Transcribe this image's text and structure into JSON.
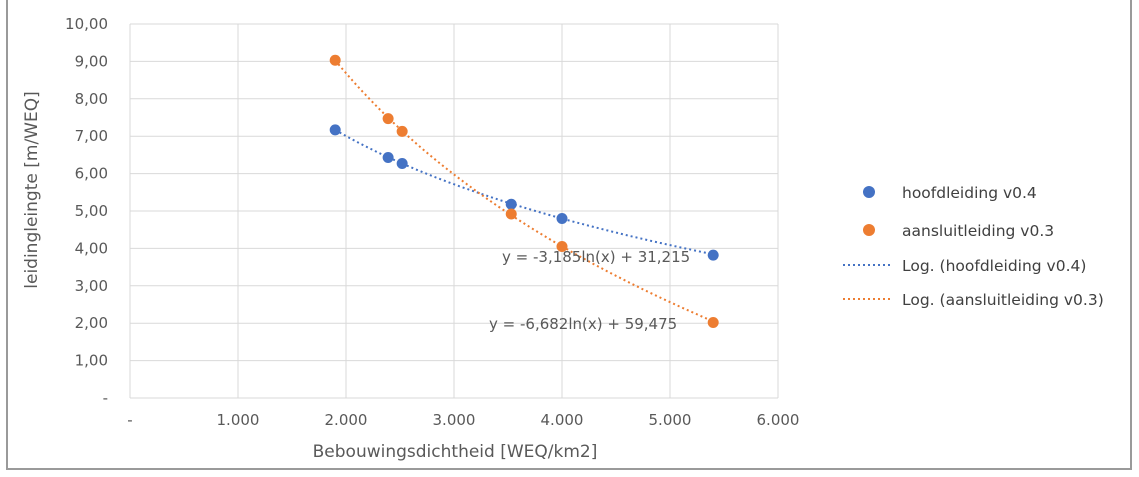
{
  "chart_data": {
    "type": "scatter",
    "title": "",
    "xlabel": "Bebouwingsdichtheid [WEQ/km2]",
    "ylabel": "leidingleingte [m/WEQ]",
    "xlim": [
      0,
      6000
    ],
    "ylim": [
      0,
      10
    ],
    "x_ticks": [
      {
        "value": 0,
        "label": "-"
      },
      {
        "value": 1000,
        "label": "1.000"
      },
      {
        "value": 2000,
        "label": "2.000"
      },
      {
        "value": 3000,
        "label": "3.000"
      },
      {
        "value": 4000,
        "label": "4.000"
      },
      {
        "value": 5000,
        "label": "5.000"
      },
      {
        "value": 6000,
        "label": "6.000"
      }
    ],
    "y_ticks": [
      {
        "value": 0,
        "label": "-"
      },
      {
        "value": 1,
        "label": "1,00"
      },
      {
        "value": 2,
        "label": "2,00"
      },
      {
        "value": 3,
        "label": "3,00"
      },
      {
        "value": 4,
        "label": "4,00"
      },
      {
        "value": 5,
        "label": "5,00"
      },
      {
        "value": 6,
        "label": "6,00"
      },
      {
        "value": 7,
        "label": "7,00"
      },
      {
        "value": 8,
        "label": "8,00"
      },
      {
        "value": 9,
        "label": "9,00"
      },
      {
        "value": 10,
        "label": "10,00"
      }
    ],
    "grid": true,
    "legend_position": "right",
    "series": [
      {
        "name": "hoofdleiding v0.4",
        "color": "#4472c4",
        "points": [
          [
            1900,
            7.17
          ],
          [
            2390,
            6.43
          ],
          [
            2520,
            6.27
          ],
          [
            3530,
            5.18
          ],
          [
            4000,
            4.8
          ],
          [
            5400,
            3.82
          ]
        ],
        "trendline": {
          "name": "Log. (hoofdleiding v0.4)",
          "type": "logarithmic",
          "a": -3.185,
          "b": 31.215,
          "equation": "y = -3,185ln(x) + 31,215",
          "x_range": [
            1900,
            5400
          ]
        }
      },
      {
        "name": "aansluitleiding v0.3",
        "color": "#ed7d31",
        "points": [
          [
            1900,
            9.03
          ],
          [
            2390,
            7.47
          ],
          [
            2520,
            7.13
          ],
          [
            3530,
            4.92
          ],
          [
            4000,
            4.05
          ],
          [
            5400,
            2.02
          ]
        ],
        "trendline": {
          "name": "Log. (aansluitleiding v0.3)",
          "type": "logarithmic",
          "a": -6.682,
          "b": 59.475,
          "equation": "y = -6,682ln(x) + 59,475",
          "x_range": [
            1900,
            5400
          ]
        }
      }
    ]
  }
}
